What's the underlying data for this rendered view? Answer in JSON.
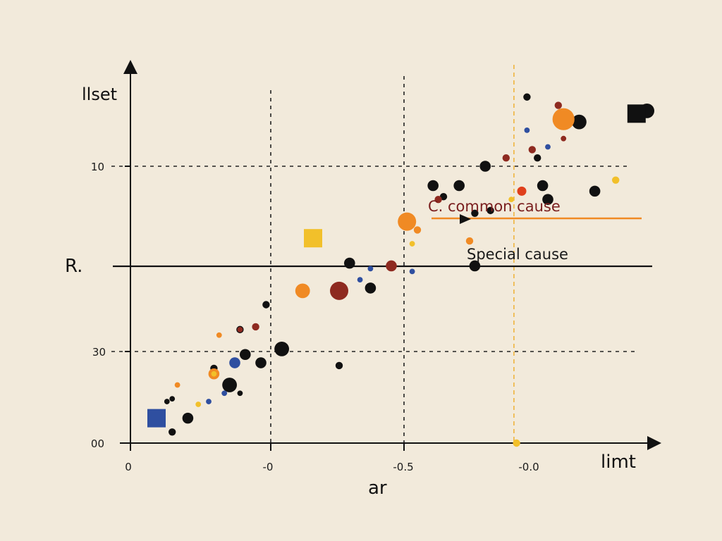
{
  "chart_data": {
    "type": "scatter",
    "title": "",
    "ylabel": "llset",
    "xlabel": "ar",
    "x_end_label": "limt",
    "y_side_label": "R.",
    "x_tick_labels": [
      "0",
      "-0",
      "-0.5",
      "-0.0"
    ],
    "y_tick_labels": [
      "10",
      "30",
      "00"
    ],
    "xlim": [
      0,
      1
    ],
    "ylim": [
      0,
      1
    ],
    "grid": "dashed",
    "annotations": [
      {
        "text": "C. common cause",
        "color": "#7a1e1e",
        "line_color": "#f08a24"
      },
      {
        "text": "Special cause",
        "color": "#1a1a1a",
        "line_color": "#111111"
      }
    ],
    "reference_lines": {
      "special_y": 0.64,
      "common_y": 0.81,
      "common_x_range": [
        0.57,
        0.99
      ],
      "vertical_dashed_x": 0.735
    },
    "series": [
      {
        "color": "#111111",
        "marker": "circle",
        "points": [
          [
            0.08,
            0.04,
            2
          ],
          [
            0.11,
            0.09,
            3
          ],
          [
            0.19,
            0.21,
            4
          ],
          [
            0.21,
            0.41,
            2
          ],
          [
            0.16,
            0.27,
            2
          ],
          [
            0.22,
            0.32,
            3
          ],
          [
            0.29,
            0.34,
            4
          ],
          [
            0.26,
            0.5,
            2
          ],
          [
            0.25,
            0.29,
            3
          ],
          [
            0.4,
            0.28,
            2
          ],
          [
            0.46,
            0.56,
            3
          ],
          [
            0.42,
            0.65,
            3
          ],
          [
            0.66,
            0.64,
            3
          ],
          [
            0.69,
            0.84,
            2
          ],
          [
            0.66,
            0.83,
            2
          ],
          [
            0.58,
            0.93,
            3
          ],
          [
            0.63,
            0.93,
            3
          ],
          [
            0.89,
            0.91,
            3
          ],
          [
            0.6,
            0.89,
            2
          ],
          [
            0.68,
            1.0,
            3
          ],
          [
            0.8,
            0.88,
            3
          ],
          [
            0.79,
            0.93,
            3
          ],
          [
            0.76,
            1.25,
            2
          ],
          [
            0.86,
            1.16,
            4
          ],
          [
            0.99,
            1.2,
            4
          ],
          [
            0.78,
            1.03,
            2
          ],
          [
            0.21,
            0.18,
            1.5
          ],
          [
            0.08,
            0.16,
            1.5
          ],
          [
            0.07,
            0.15,
            1.5
          ]
        ]
      },
      {
        "color": "#f08a24",
        "marker": "circle",
        "points": [
          [
            0.53,
            0.8,
            5
          ],
          [
            0.33,
            0.55,
            4
          ],
          [
            0.83,
            1.17,
            6
          ],
          [
            0.65,
            0.73,
            2
          ],
          [
            0.55,
            0.77,
            2
          ],
          [
            0.16,
            0.25,
            3
          ],
          [
            0.09,
            0.21,
            1.5
          ],
          [
            0.17,
            0.39,
            1.5
          ]
        ]
      },
      {
        "color": "#f2c02a",
        "marker": "circle",
        "points": [
          [
            0.74,
            0.0,
            2
          ],
          [
            0.93,
            0.95,
            2
          ],
          [
            0.54,
            0.72,
            1.5
          ],
          [
            0.13,
            0.14,
            1.5
          ],
          [
            0.73,
            0.88,
            1.5
          ],
          [
            0.16,
            0.25,
            1.5
          ]
        ]
      },
      {
        "color": "#8e2a20",
        "marker": "circle",
        "points": [
          [
            0.4,
            0.55,
            5
          ],
          [
            0.5,
            0.64,
            3
          ],
          [
            0.82,
            1.22,
            2
          ],
          [
            0.77,
            1.06,
            2
          ],
          [
            0.72,
            1.03,
            2
          ],
          [
            0.59,
            0.88,
            2
          ],
          [
            0.24,
            0.42,
            2
          ],
          [
            0.21,
            0.41,
            1.5
          ],
          [
            0.83,
            1.1,
            1.5
          ]
        ]
      },
      {
        "color": "#e0401c",
        "marker": "circle",
        "points": [
          [
            0.75,
            0.91,
            2.5
          ]
        ]
      },
      {
        "color": "#2f4fa0",
        "marker": "circle",
        "points": [
          [
            0.2,
            0.29,
            3
          ],
          [
            0.15,
            0.15,
            1.5
          ],
          [
            0.18,
            0.18,
            1.5
          ],
          [
            0.44,
            0.59,
            1.5
          ],
          [
            0.46,
            0.63,
            1.5
          ],
          [
            0.54,
            0.62,
            1.5
          ],
          [
            0.8,
            1.07,
            1.5
          ],
          [
            0.76,
            1.13,
            1.5
          ]
        ]
      },
      {
        "color": "#2f4fa0",
        "marker": "square",
        "points": [
          [
            0.05,
            0.09,
            5
          ]
        ]
      },
      {
        "color": "#f2c02a",
        "marker": "square",
        "points": [
          [
            0.35,
            0.74,
            5
          ]
        ]
      },
      {
        "color": "#111111",
        "marker": "square",
        "points": [
          [
            0.97,
            1.19,
            5
          ]
        ]
      }
    ]
  }
}
